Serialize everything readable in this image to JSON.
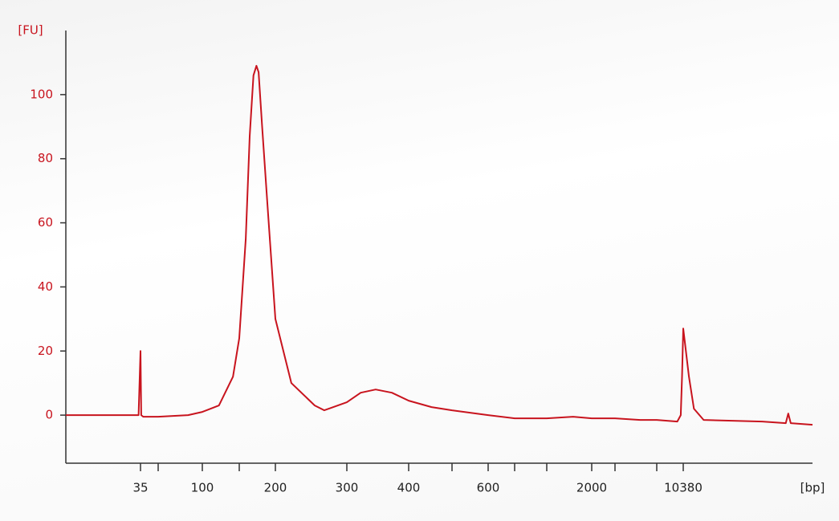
{
  "chart_data": {
    "type": "line",
    "y_label": "[FU]",
    "x_label": "[bp]",
    "color": "#c8141e",
    "xlim": [
      20,
      15000
    ],
    "ylim": [
      -15,
      120
    ],
    "yticks": [
      0,
      20,
      40,
      60,
      80,
      100
    ],
    "xticks": [
      35,
      100,
      200,
      300,
      400,
      600,
      2000,
      10380
    ],
    "xminorticks": [
      50,
      150,
      500,
      700,
      1000,
      3000,
      7000
    ],
    "x": [
      20,
      33,
      34.5,
      35,
      35.5,
      37,
      50,
      80,
      100,
      120,
      140,
      150,
      158,
      163,
      168,
      172,
      175,
      180,
      188,
      200,
      219,
      250,
      264,
      300,
      320,
      343,
      370,
      400,
      450,
      500,
      600,
      700,
      1000,
      1500,
      2000,
      3000,
      5000,
      7000,
      9500,
      10000,
      10200,
      10380,
      10550,
      10700,
      11000,
      13000,
      13900,
      14000,
      14100,
      15000
    ],
    "values": [
      0,
      0,
      0,
      20,
      0,
      -0.5,
      -0.5,
      0,
      1,
      3,
      12,
      24,
      55,
      87,
      106,
      109,
      107,
      90,
      65,
      30,
      10,
      3,
      1.5,
      4,
      7,
      8,
      7,
      4.5,
      2.5,
      1.5,
      0,
      -1,
      -1,
      -0.5,
      -1,
      -1,
      -1.5,
      -1.5,
      -2,
      0,
      12,
      27,
      12,
      2,
      -1.5,
      -2,
      -2.5,
      0.5,
      -2.5,
      -3
    ]
  }
}
